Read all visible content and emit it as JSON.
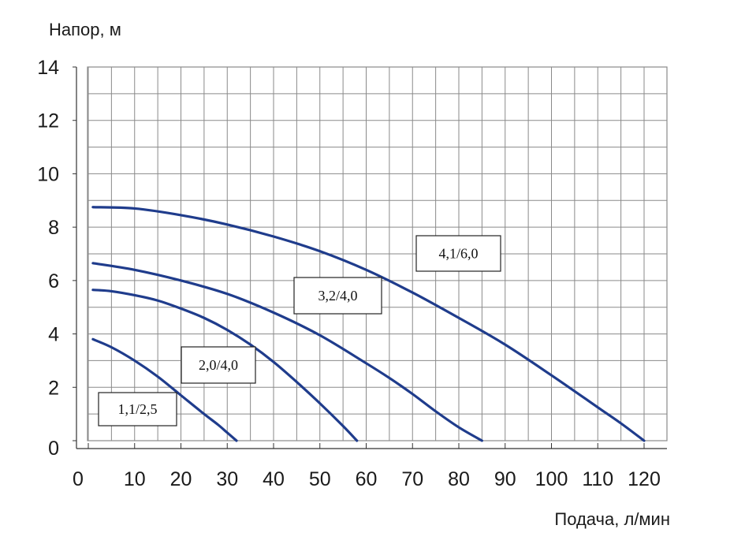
{
  "chart_data": {
    "type": "line",
    "title": "",
    "xlabel": "Подача, л/мин",
    "ylabel": "Напор, м",
    "xlim": [
      0,
      120
    ],
    "ylim": [
      0,
      14
    ],
    "xticks": [
      0,
      10,
      20,
      30,
      40,
      50,
      60,
      70,
      80,
      90,
      100,
      110,
      120
    ],
    "yticks": [
      0,
      2,
      4,
      6,
      8,
      10,
      12,
      14
    ],
    "grid": true,
    "grid_minor_x": 5,
    "grid_minor_y": 1,
    "colors": {
      "line": "#1f3c8c",
      "grid": "#8a8a8a",
      "plot_bg": "#ffffff"
    },
    "series": [
      {
        "name": "1,1/2,5",
        "x": [
          1,
          5,
          10,
          15,
          20,
          25,
          28,
          30,
          32
        ],
        "y": [
          3.8,
          3.5,
          3.0,
          2.4,
          1.7,
          1.0,
          0.6,
          0.3,
          0
        ]
      },
      {
        "name": "2,0/4,0",
        "x": [
          1,
          5,
          10,
          15,
          20,
          25,
          30,
          35,
          40,
          45,
          50,
          55,
          58
        ],
        "y": [
          5.65,
          5.6,
          5.45,
          5.25,
          4.95,
          4.6,
          4.15,
          3.6,
          2.95,
          2.2,
          1.4,
          0.55,
          0
        ]
      },
      {
        "name": "3,2/4,0",
        "x": [
          1,
          10,
          20,
          30,
          40,
          50,
          60,
          65,
          70,
          75,
          80,
          85
        ],
        "y": [
          6.65,
          6.4,
          6.0,
          5.5,
          4.8,
          3.95,
          2.9,
          2.35,
          1.75,
          1.1,
          0.5,
          0
        ]
      },
      {
        "name": "4,1/6,0",
        "x": [
          1,
          10,
          20,
          30,
          40,
          50,
          60,
          70,
          80,
          90,
          100,
          110,
          115,
          120
        ],
        "y": [
          8.75,
          8.7,
          8.45,
          8.1,
          7.65,
          7.1,
          6.4,
          5.55,
          4.6,
          3.6,
          2.45,
          1.25,
          0.65,
          0
        ]
      }
    ],
    "labels": [
      {
        "text": "1,1/2,5",
        "series": "1,1/2,5"
      },
      {
        "text": "2,0/4,0",
        "series": "2,0/4,0"
      },
      {
        "text": "3,2/4,0",
        "series": "3,2/4,0"
      },
      {
        "text": "4,1/6,0",
        "series": "4,1/6,0"
      }
    ]
  }
}
